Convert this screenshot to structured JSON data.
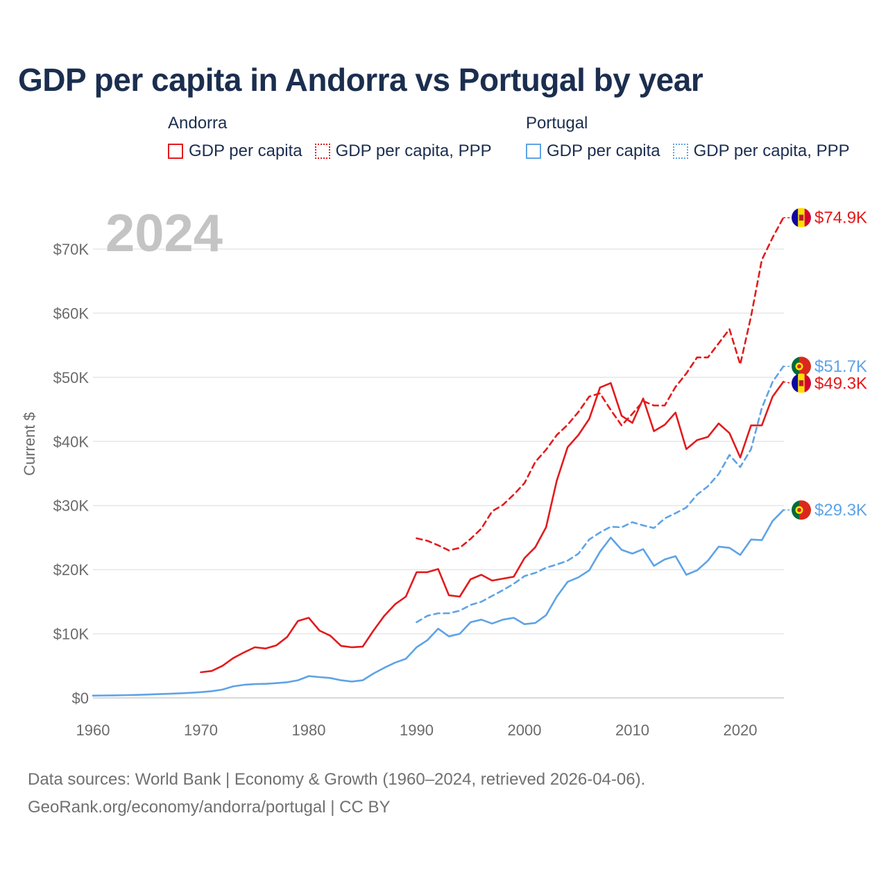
{
  "title": "GDP per capita in Andorra vs Portugal by year",
  "legend": {
    "groups": [
      {
        "label": "Andorra",
        "items": [
          {
            "label": "GDP per capita",
            "color": "#e31a1c",
            "style": "solid"
          },
          {
            "label": "GDP per capita, PPP",
            "color": "#e31a1c",
            "style": "dotted"
          }
        ]
      },
      {
        "label": "Portugal",
        "items": [
          {
            "label": "GDP per capita",
            "color": "#5ea3e6",
            "style": "solid"
          },
          {
            "label": "GDP per capita, PPP",
            "color": "#5ea3e6",
            "style": "dotted"
          }
        ]
      }
    ]
  },
  "footer": {
    "line1": "Data sources: World Bank | Economy & Growth (1960–2024, retrieved 2026-04-06).",
    "line2": "GeoRank.org/economy/andorra/portugal | CC BY"
  },
  "chart_data": {
    "type": "line",
    "year_label": "2024",
    "ylabel": "Current $",
    "xlim": [
      1960,
      2024
    ],
    "ylim": [
      0,
      75000
    ],
    "x_ticks": [
      1960,
      1970,
      1980,
      1990,
      2000,
      2010,
      2020
    ],
    "y_ticks": [
      {
        "value": 0,
        "label": "$0"
      },
      {
        "value": 10000,
        "label": "$10K"
      },
      {
        "value": 20000,
        "label": "$20K"
      },
      {
        "value": 30000,
        "label": "$30K"
      },
      {
        "value": 40000,
        "label": "$40K"
      },
      {
        "value": 50000,
        "label": "$50K"
      },
      {
        "value": 60000,
        "label": "$60K"
      },
      {
        "value": 70000,
        "label": "$70K"
      }
    ],
    "series": [
      {
        "name": "Andorra GDP per capita, PPP",
        "country": "Andorra",
        "color": "#e31a1c",
        "dashed": true,
        "end_label": "$74.9K",
        "x": [
          1990,
          1991,
          1992,
          1993,
          1994,
          1995,
          1996,
          1997,
          1998,
          1999,
          2000,
          2001,
          2002,
          2003,
          2004,
          2005,
          2006,
          2007,
          2008,
          2009,
          2010,
          2011,
          2012,
          2013,
          2014,
          2015,
          2016,
          2017,
          2018,
          2019,
          2020,
          2021,
          2022,
          2023,
          2024
        ],
        "values": [
          24900,
          24500,
          23800,
          23000,
          23400,
          24800,
          26400,
          29100,
          30100,
          31700,
          33500,
          36800,
          38700,
          41000,
          42600,
          44600,
          47000,
          47500,
          44900,
          42500,
          44300,
          46300,
          45600,
          45600,
          48500,
          50600,
          53100,
          53100,
          55300,
          57500,
          52000,
          59500,
          68300,
          71800,
          74900
        ]
      },
      {
        "name": "Portugal GDP per capita, PPP",
        "country": "Portugal",
        "color": "#5ea3e6",
        "dashed": true,
        "end_label": "$51.7K",
        "x": [
          1990,
          1991,
          1992,
          1993,
          1994,
          1995,
          1996,
          1997,
          1998,
          1999,
          2000,
          2001,
          2002,
          2003,
          2004,
          2005,
          2006,
          2007,
          2008,
          2009,
          2010,
          2011,
          2012,
          2013,
          2014,
          2015,
          2016,
          2017,
          2018,
          2019,
          2020,
          2021,
          2022,
          2023,
          2024
        ],
        "values": [
          11800,
          12800,
          13200,
          13200,
          13600,
          14500,
          15000,
          15900,
          16800,
          17800,
          19000,
          19500,
          20300,
          20800,
          21400,
          22500,
          24700,
          25800,
          26700,
          26600,
          27400,
          26900,
          26500,
          28000,
          28800,
          29700,
          31700,
          33000,
          34900,
          37900,
          36000,
          38800,
          45200,
          49300,
          51700
        ]
      },
      {
        "name": "Andorra GDP per capita",
        "country": "Andorra",
        "color": "#e31a1c",
        "dashed": false,
        "end_label": "$49.3K",
        "x": [
          1970,
          1971,
          1972,
          1973,
          1974,
          1975,
          1976,
          1977,
          1978,
          1979,
          1980,
          1981,
          1982,
          1983,
          1984,
          1985,
          1986,
          1987,
          1988,
          1989,
          1990,
          1991,
          1992,
          1993,
          1994,
          1995,
          1996,
          1997,
          1998,
          1999,
          2000,
          2001,
          2002,
          2003,
          2004,
          2005,
          2006,
          2007,
          2008,
          2009,
          2010,
          2011,
          2012,
          2013,
          2014,
          2015,
          2016,
          2017,
          2018,
          2019,
          2020,
          2021,
          2022,
          2023,
          2024
        ],
        "values": [
          4000,
          4200,
          5000,
          6200,
          7100,
          7900,
          7700,
          8200,
          9500,
          12000,
          12500,
          10500,
          9700,
          8100,
          7900,
          8000,
          10500,
          12800,
          14600,
          15800,
          19600,
          19600,
          20100,
          16000,
          15800,
          18500,
          19200,
          18300,
          18600,
          18900,
          21800,
          23500,
          26600,
          33900,
          39100,
          41000,
          43500,
          48400,
          49100,
          44000,
          42900,
          46700,
          41600,
          42600,
          44500,
          38800,
          40200,
          40700,
          42800,
          41300,
          37500,
          42500,
          42500,
          47000,
          49300
        ]
      },
      {
        "name": "Portugal GDP per capita",
        "country": "Portugal",
        "color": "#5ea3e6",
        "dashed": false,
        "end_label": "$29.3K",
        "x": [
          1960,
          1961,
          1962,
          1963,
          1964,
          1965,
          1966,
          1967,
          1968,
          1969,
          1970,
          1971,
          1972,
          1973,
          1974,
          1975,
          1976,
          1977,
          1978,
          1979,
          1980,
          1981,
          1982,
          1983,
          1984,
          1985,
          1986,
          1987,
          1988,
          1989,
          1990,
          1991,
          1992,
          1993,
          1994,
          1995,
          1996,
          1997,
          1998,
          1999,
          2000,
          2001,
          2002,
          2003,
          2004,
          2005,
          2006,
          2007,
          2008,
          2009,
          2010,
          2011,
          2012,
          2013,
          2014,
          2015,
          2016,
          2017,
          2018,
          2019,
          2020,
          2021,
          2022,
          2023,
          2024
        ],
        "values": [
          360,
          380,
          400,
          430,
          470,
          520,
          580,
          640,
          710,
          790,
          900,
          1050,
          1300,
          1800,
          2050,
          2150,
          2200,
          2300,
          2450,
          2750,
          3400,
          3250,
          3100,
          2750,
          2550,
          2750,
          3800,
          4700,
          5500,
          6100,
          7900,
          9000,
          10800,
          9600,
          10000,
          11800,
          12200,
          11600,
          12200,
          12500,
          11500,
          11700,
          12900,
          15800,
          18100,
          18800,
          19900,
          22800,
          25000,
          23100,
          22500,
          23200,
          20600,
          21600,
          22100,
          19200,
          19900,
          21400,
          23600,
          23400,
          22300,
          24700,
          24600,
          27600,
          29300
        ]
      }
    ]
  }
}
